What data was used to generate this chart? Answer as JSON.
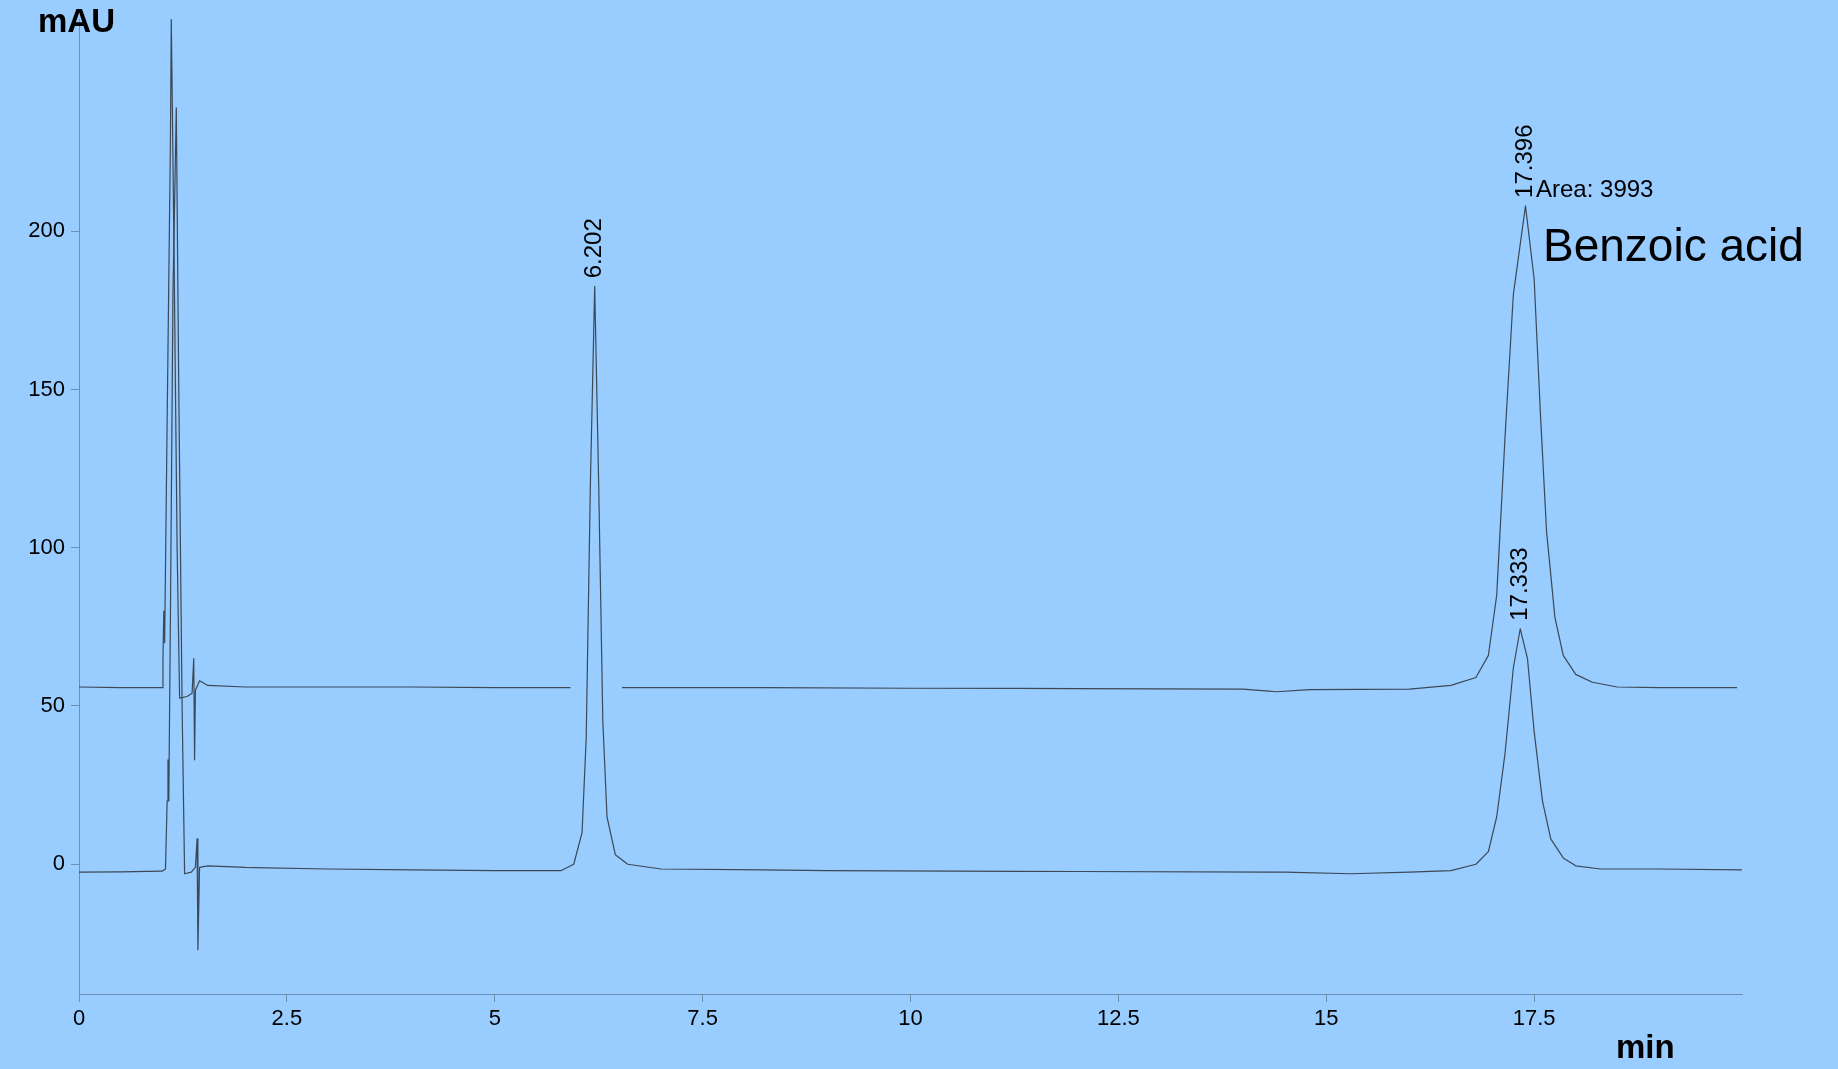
{
  "chart_data": {
    "type": "line",
    "xlabel": "min",
    "ylabel": "mAU",
    "xlim": [
      0,
      20
    ],
    "ylim": [
      -41,
      267
    ],
    "xticks": [
      0,
      2.5,
      5,
      7.5,
      10,
      12.5,
      15,
      17.5
    ],
    "yticks": [
      0,
      50,
      100,
      150,
      200
    ],
    "grid": false,
    "legend": false,
    "marker": "none",
    "line_style": "solid",
    "series": [
      {
        "color": "#3c4856",
        "x": [
          0,
          0.5,
          1.0,
          1.01,
          1.02,
          1.03,
          1.06,
          1.1,
          1.11,
          1.14,
          1.18,
          1.21,
          1.3,
          1.36,
          1.38,
          1.39,
          1.4,
          1.45,
          1.55,
          2,
          3,
          4,
          5,
          5.91,
          6.2,
          6.53,
          8,
          10,
          12,
          14,
          14.4,
          14.8,
          16,
          16.5,
          16.8,
          16.95,
          17.05,
          17.1,
          17.15,
          17.25,
          17.396,
          17.5,
          17.58,
          17.65,
          17.75,
          17.85,
          18.0,
          18.2,
          18.5,
          19,
          19.94
        ],
        "values": [
          56,
          55.8,
          55.8,
          65,
          80,
          70,
          140,
          230,
          267,
          200,
          100,
          52.5,
          53,
          54,
          65,
          33,
          55,
          58,
          56.5,
          56,
          56,
          56,
          55.8,
          55.8,
          null,
          55.8,
          55.8,
          55.6,
          55.5,
          55.3,
          54.5,
          55.2,
          55.3,
          56.5,
          59,
          66,
          85,
          110,
          135,
          180,
          208,
          185,
          140,
          105,
          78,
          66,
          60,
          57.5,
          56,
          55.8,
          55.8
        ]
      },
      {
        "color": "#3c4856",
        "x": [
          0,
          0.5,
          1.0,
          1.04,
          1.06,
          1.07,
          1.08,
          1.1,
          1.13,
          1.17,
          1.2,
          1.24,
          1.27,
          1.35,
          1.4,
          1.42,
          1.43,
          1.45,
          1.55,
          2,
          3,
          4,
          5,
          5.8,
          5.95,
          6.05,
          6.1,
          6.15,
          6.202,
          6.25,
          6.3,
          6.35,
          6.45,
          6.6,
          7,
          9,
          12,
          14.5,
          15.3,
          16,
          16.5,
          16.8,
          16.95,
          17.05,
          17.15,
          17.25,
          17.333,
          17.42,
          17.5,
          17.6,
          17.7,
          17.85,
          18.0,
          18.3,
          19,
          20
        ],
        "values": [
          -2.5,
          -2.4,
          -2.2,
          -1.5,
          20,
          33,
          20,
          80,
          180,
          239,
          150,
          50,
          -3,
          -2.5,
          -1,
          8,
          -27,
          -1,
          -0.5,
          -1,
          -1.5,
          -1.8,
          -2,
          -2,
          0,
          10,
          40,
          120,
          182.6,
          120,
          45,
          15,
          3,
          0,
          -1.5,
          -2,
          -2.3,
          -2.5,
          -3,
          -2.5,
          -2,
          0,
          4,
          15,
          35,
          62,
          74.4,
          65,
          42,
          20,
          8,
          2,
          -0.5,
          -1.5,
          -1.5,
          -1.8
        ]
      }
    ],
    "annotations": [
      {
        "text": "6.202",
        "x": 6.202,
        "y": 182.6
      },
      {
        "text": "17.396",
        "x": 17.396,
        "y": 208
      },
      "Area: 3993",
      "Benzoic acid",
      {
        "text": "17.333",
        "x": 17.333,
        "y": 74.4
      }
    ]
  }
}
